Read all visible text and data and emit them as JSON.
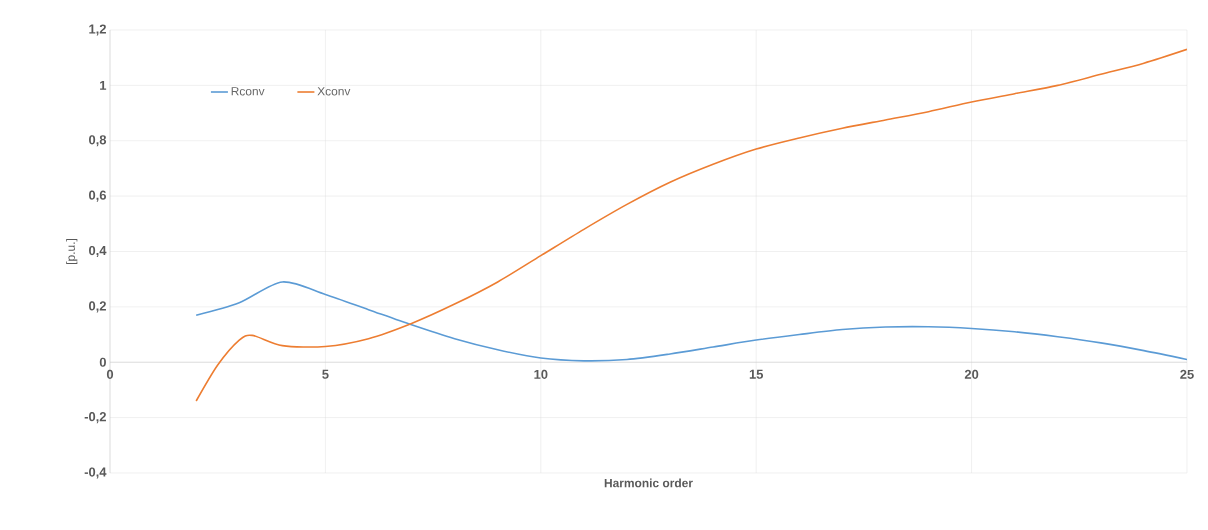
{
  "chart_data": {
    "type": "line",
    "xlabel": "Harmonic order",
    "ylabel": "[p.u.]",
    "xlim": [
      0,
      25
    ],
    "xticks": [
      0,
      5,
      10,
      15,
      20,
      25
    ],
    "ylim": [
      -0.4,
      1.2
    ],
    "yticks": [
      {
        "value": -0.4,
        "label": "-0,4"
      },
      {
        "value": -0.2,
        "label": "-0,2"
      },
      {
        "value": 0,
        "label": "0"
      },
      {
        "value": 0.2,
        "label": "0,2"
      },
      {
        "value": 0.4,
        "label": "0,4"
      },
      {
        "value": 0.6,
        "label": "0,6"
      },
      {
        "value": 0.8,
        "label": "0,8"
      },
      {
        "value": 1,
        "label": "1"
      },
      {
        "value": 1.2,
        "label": "1,2"
      }
    ],
    "grid": true,
    "legend": "top left",
    "series": [
      {
        "name": "Rconv",
        "color": "#5b9bd5",
        "x": [
          2,
          3,
          4,
          5,
          6,
          7,
          8,
          9,
          10,
          11,
          12,
          13,
          14,
          15,
          16,
          17,
          18,
          19,
          20,
          21,
          22,
          23,
          24,
          25
        ],
        "values": [
          0.17,
          0.215,
          0.29,
          0.245,
          0.19,
          0.135,
          0.085,
          0.045,
          0.015,
          0.005,
          0.01,
          0.03,
          0.055,
          0.08,
          0.1,
          0.118,
          0.127,
          0.128,
          0.122,
          0.11,
          0.092,
          0.07,
          0.042,
          0.01
        ]
      },
      {
        "name": "Xconv",
        "color": "#ed7d31",
        "x": [
          2,
          2.5,
          3,
          3.3,
          4,
          5,
          6,
          7,
          8,
          9,
          10,
          11,
          12,
          13,
          14,
          15,
          16,
          17,
          18,
          19,
          20,
          21,
          22,
          23,
          24,
          25
        ],
        "values": [
          -0.14,
          -0.01,
          0.08,
          0.097,
          0.06,
          0.057,
          0.085,
          0.14,
          0.21,
          0.29,
          0.385,
          0.48,
          0.57,
          0.65,
          0.715,
          0.77,
          0.81,
          0.845,
          0.875,
          0.905,
          0.94,
          0.97,
          1.0,
          1.04,
          1.08,
          1.13
        ]
      }
    ]
  }
}
